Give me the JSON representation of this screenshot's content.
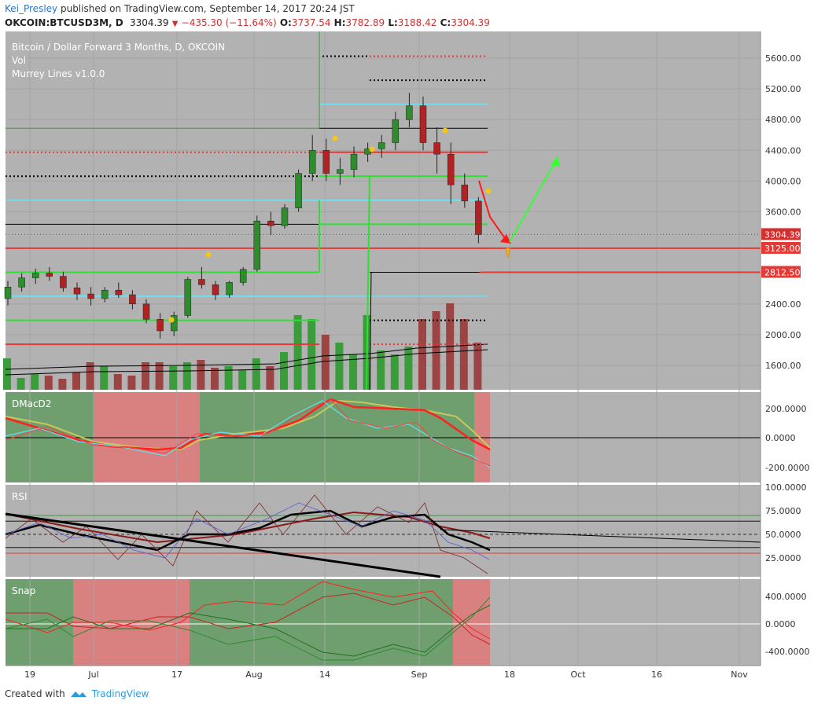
{
  "header": {
    "user": "Kei_Presley",
    "published_text": "published on TradingView.com, September 14, 2017 20:24 JST",
    "symbol": "OKCOIN:BTCUSD3M, D",
    "last": "3304.39",
    "change": "−435.30 (−11.64%)",
    "o_label": "O:",
    "o": "3737.54",
    "h_label": "H:",
    "h": "3782.89",
    "l_label": "L:",
    "l": "3188.42",
    "c_label": "C:",
    "c": "3304.39"
  },
  "legend": {
    "title": "Bitcoin / Dollar Forward 3 Months, D, OKCOIN",
    "vol": "Vol",
    "indicator": "Murrey Lines v1.0.0"
  },
  "price_ticks": [
    "5600.00",
    "5200.00",
    "4800.00",
    "4400.00",
    "4000.00",
    "3600.00",
    "2400.00",
    "2000.00",
    "1600.00"
  ],
  "price_labels": [
    {
      "text": "3304.39",
      "color": "#d32f2f"
    },
    {
      "text": "3125.00",
      "color": "#e53935"
    },
    {
      "text": "2812.50",
      "color": "#e53935"
    }
  ],
  "panes": {
    "dmac": {
      "label": "DMacD2",
      "ticks": [
        "200.0000",
        "0.0000",
        "-200.0000"
      ]
    },
    "rsi": {
      "label": "RSI",
      "ticks": [
        "100.0000",
        "75.0000",
        "50.0000",
        "25.0000"
      ]
    },
    "snap": {
      "label": "Snap",
      "ticks": [
        "400.0000",
        "0.0000",
        "-400.0000"
      ]
    }
  },
  "time_axis": [
    "19",
    "Jul",
    "17",
    "Aug",
    "14",
    "Sep",
    "18",
    "Oct",
    "16",
    "Nov"
  ],
  "footer": {
    "created": "Created with",
    "brand": "TradingView"
  },
  "colors": {
    "bg_plot": "#b2b2b2",
    "up": "#3a9c3a",
    "down": "#b22222",
    "green_zone": "#6f9f6f",
    "red_zone": "#d98080",
    "cyan": "#6ee0f0",
    "lime": "#30e030",
    "red": "#e53935",
    "black": "#000000"
  },
  "chart_data": {
    "type": "candlestick",
    "ylim": [
      1200,
      5850
    ],
    "dates": [
      "19",
      "Jul",
      "17",
      "Aug",
      "14",
      "Sep"
    ],
    "ohlc_approx": [
      [
        2470,
        2700,
        2380,
        2620
      ],
      [
        2620,
        2800,
        2560,
        2740
      ],
      [
        2740,
        2860,
        2660,
        2800
      ],
      [
        2800,
        2880,
        2700,
        2760
      ],
      [
        2760,
        2820,
        2560,
        2610
      ],
      [
        2610,
        2680,
        2450,
        2530
      ],
      [
        2530,
        2620,
        2380,
        2470
      ],
      [
        2470,
        2620,
        2420,
        2580
      ],
      [
        2580,
        2680,
        2480,
        2520
      ],
      [
        2520,
        2580,
        2330,
        2400
      ],
      [
        2400,
        2460,
        2150,
        2200
      ],
      [
        2200,
        2280,
        1950,
        2050
      ],
      [
        2050,
        2300,
        1980,
        2250
      ],
      [
        2250,
        2750,
        2220,
        2720
      ],
      [
        2720,
        2880,
        2600,
        2650
      ],
      [
        2650,
        2700,
        2450,
        2520
      ],
      [
        2520,
        2700,
        2480,
        2680
      ],
      [
        2680,
        2880,
        2640,
        2850
      ],
      [
        2850,
        3550,
        2820,
        3480
      ],
      [
        3480,
        3600,
        3300,
        3420
      ],
      [
        3420,
        3700,
        3380,
        3650
      ],
      [
        3650,
        4150,
        3600,
        4100
      ],
      [
        4100,
        4600,
        4000,
        4400
      ],
      [
        4400,
        4550,
        4000,
        4100
      ],
      [
        4100,
        4300,
        3950,
        4150
      ],
      [
        4150,
        4450,
        4050,
        4350
      ],
      [
        4350,
        4500,
        4250,
        4420
      ],
      [
        4420,
        4600,
        4300,
        4500
      ],
      [
        4500,
        4900,
        4400,
        4800
      ],
      [
        4800,
        5150,
        4700,
        4980
      ],
      [
        4980,
        5100,
        4400,
        4500
      ],
      [
        4500,
        4700,
        4100,
        4350
      ],
      [
        4350,
        4500,
        3700,
        3950
      ],
      [
        3950,
        4100,
        3650,
        3740
      ],
      [
        3740,
        3790,
        3190,
        3304
      ]
    ],
    "murrey_levels": [
      5625.0,
      5312.5,
      5000.0,
      4687.5,
      4375.0,
      4062.5,
      3750.0,
      3437.5,
      3125.0,
      2812.5
    ],
    "last_price": 3304.39,
    "dmac_range": [
      -300,
      330
    ],
    "rsi_range": [
      0,
      100
    ],
    "rsi_levels": [
      70,
      50,
      30
    ],
    "snap_range": [
      -600,
      600
    ]
  }
}
